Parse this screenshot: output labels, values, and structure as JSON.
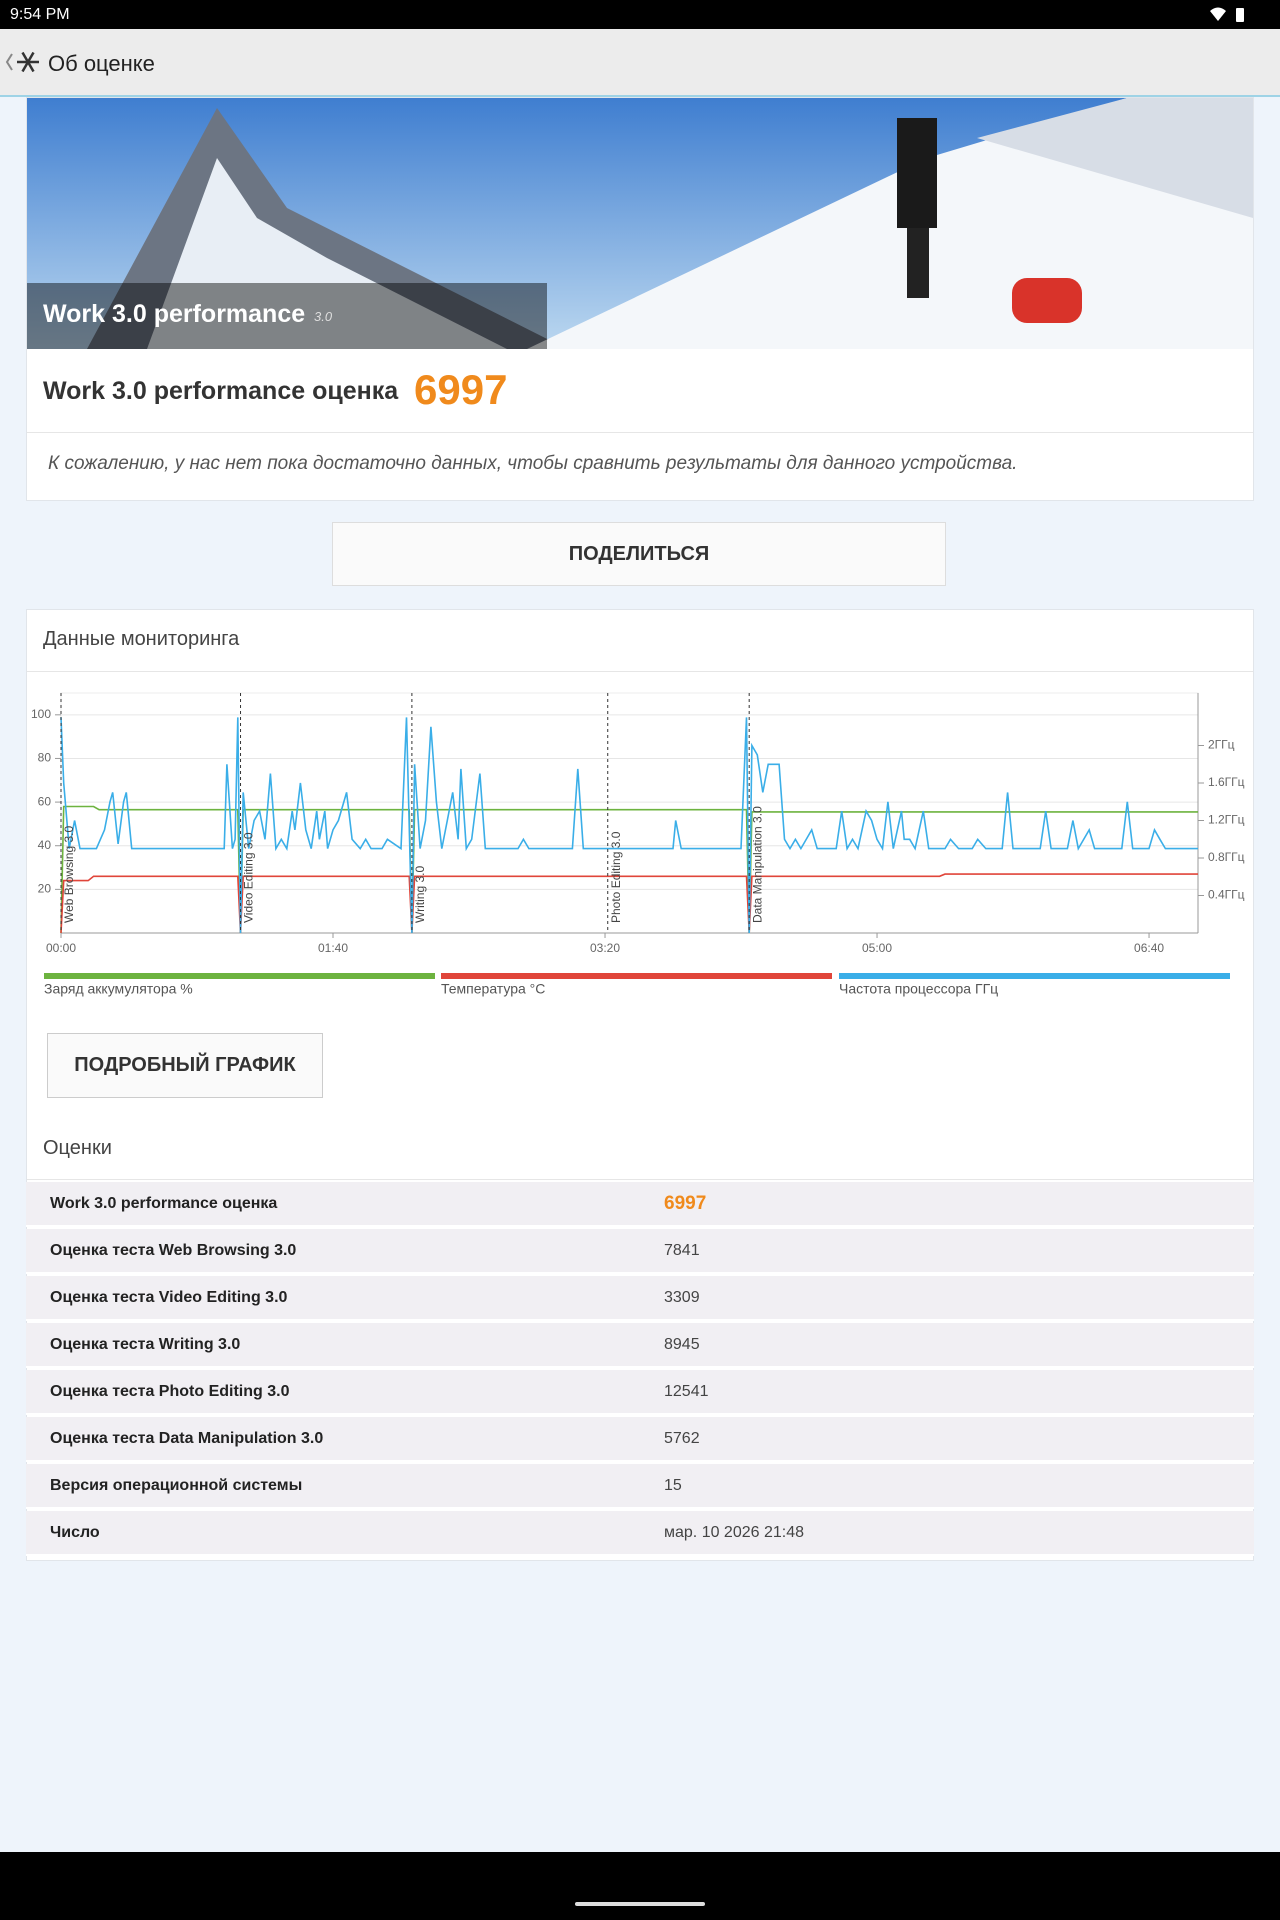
{
  "status_bar": {
    "time": "9:54 PM"
  },
  "app_bar": {
    "title": "Об оценке"
  },
  "banner": {
    "title": "Work 3.0 performance",
    "version": "3.0"
  },
  "score": {
    "label": "Work 3.0 performance оценка",
    "value": "6997"
  },
  "note": "К сожалению, у нас нет пока достаточно данных, чтобы сравнить результаты для данного устройства.",
  "share_button": "ПОДЕЛИТЬСЯ",
  "monitoring": {
    "title": "Данные мониторинга",
    "detail_button": "ПОДРОБНЫЙ ГРАФИК"
  },
  "chart_data": {
    "type": "line",
    "xlim": [
      0,
      418
    ],
    "xticks": [
      {
        "value": 0,
        "label": "00:00"
      },
      {
        "value": 100,
        "label": "01:40"
      },
      {
        "value": 200,
        "label": "03:20"
      },
      {
        "value": 300,
        "label": "05:00"
      },
      {
        "value": 400,
        "label": "06:40"
      }
    ],
    "ylim": [
      0,
      110
    ],
    "yticks": [
      20,
      40,
      60,
      80,
      100
    ],
    "y2lim": [
      0,
      2.56
    ],
    "y2ticks": [
      {
        "value": 0.4,
        "label": "0.4ГГц"
      },
      {
        "value": 0.8,
        "label": "0.8ГГц"
      },
      {
        "value": 1.2,
        "label": "1.2ГГц"
      },
      {
        "value": 1.6,
        "label": "1.6ГГц"
      },
      {
        "value": 2,
        "label": "2ГГц"
      }
    ],
    "grid": true,
    "markers": [
      {
        "label": "Web Browsing 3.0",
        "x": 0
      },
      {
        "label": "Video Editing 3.0",
        "x": 66
      },
      {
        "label": "Writing 3.0",
        "x": 129
      },
      {
        "label": "Photo Editing 3.0",
        "x": 201
      },
      {
        "label": "Data Manipulation 3.0",
        "x": 253
      }
    ],
    "series": [
      {
        "name": "Заряд аккумулятора %",
        "color": "#6db33f",
        "axis": "y",
        "x": [
          0,
          1,
          12,
          14,
          65,
          66,
          67,
          128,
          129,
          130,
          252,
          253,
          254,
          418
        ],
        "values": [
          0,
          58,
          58,
          56.5,
          56.5,
          0,
          56.5,
          56.5,
          0,
          56.5,
          56.5,
          0,
          55.5,
          55.5
        ]
      },
      {
        "name": "Температура °C",
        "color": "#e0453a",
        "axis": "y",
        "x": [
          0,
          1,
          10,
          12,
          65,
          66,
          67,
          128,
          129,
          130,
          252,
          253,
          254,
          323,
          325,
          418
        ],
        "values": [
          0,
          24,
          24,
          26,
          26,
          0,
          26,
          26,
          0,
          26,
          26,
          0,
          26,
          26,
          27,
          27
        ]
      },
      {
        "name": "Частота процессора ГГц",
        "color": "#3aaee8",
        "axis": "y2",
        "x": [
          0,
          1,
          3,
          5,
          7,
          10,
          13,
          16,
          18,
          19,
          21,
          23,
          24,
          26,
          30,
          40,
          50,
          60,
          61,
          63,
          64,
          65,
          66,
          67,
          69,
          71,
          73,
          75,
          77,
          79,
          81,
          83,
          85,
          86,
          88,
          90,
          92,
          94,
          95,
          97,
          98,
          100,
          102,
          105,
          107,
          110,
          112,
          114,
          118,
          120,
          125,
          127,
          129,
          130,
          132,
          134,
          136,
          138,
          140,
          142,
          144,
          146,
          147,
          149,
          151,
          154,
          156,
          160,
          168,
          170,
          172,
          180,
          188,
          190,
          192,
          199,
          201,
          202,
          215,
          225,
          226,
          228,
          240,
          250,
          252,
          253,
          254,
          256,
          258,
          260,
          262,
          264,
          266,
          268,
          270,
          272,
          276,
          278,
          285,
          287,
          289,
          291,
          293,
          296,
          298,
          300,
          302,
          304,
          306,
          309,
          310,
          312,
          314,
          317,
          319,
          325,
          327,
          330,
          335,
          337,
          340,
          346,
          348,
          350,
          360,
          362,
          364,
          370,
          372,
          374,
          378,
          380,
          390,
          392,
          394,
          400,
          402,
          404,
          406,
          418
        ],
        "values": [
          2.3,
          1.6,
          0.9,
          1.2,
          0.9,
          0.9,
          0.9,
          1.1,
          1.4,
          1.5,
          0.95,
          1.4,
          1.5,
          0.9,
          0.9,
          0.9,
          0.9,
          0.9,
          1.8,
          0.9,
          1.0,
          2.3,
          0,
          1.5,
          0.9,
          1.2,
          1.3,
          1.0,
          1.7,
          0.9,
          1.0,
          0.9,
          1.3,
          1.1,
          1.6,
          1.1,
          0.9,
          1.3,
          1.0,
          1.3,
          0.9,
          1.1,
          1.2,
          1.5,
          1.0,
          0.9,
          1.0,
          0.9,
          0.9,
          1.0,
          0.9,
          2.3,
          0,
          1.8,
          0.9,
          1.2,
          2.2,
          1.4,
          0.9,
          1.2,
          1.5,
          1.0,
          1.75,
          0.9,
          1.0,
          1.7,
          0.9,
          0.9,
          0.9,
          1.0,
          0.9,
          0.9,
          0.9,
          1.75,
          0.9,
          0.9,
          0.9,
          0.9,
          0.9,
          0.9,
          1.2,
          0.9,
          0.9,
          0.9,
          2.3,
          0,
          2.0,
          1.9,
          1.5,
          1.8,
          1.8,
          1.8,
          1.0,
          0.9,
          1.0,
          0.9,
          1.1,
          0.9,
          0.9,
          1.3,
          0.9,
          1.0,
          0.9,
          1.3,
          1.2,
          1.0,
          0.9,
          1.4,
          0.9,
          1.3,
          1.0,
          1.0,
          0.9,
          1.3,
          0.9,
          0.9,
          1.0,
          0.9,
          0.9,
          1.0,
          0.9,
          0.9,
          1.5,
          0.9,
          0.9,
          1.3,
          0.9,
          0.9,
          1.2,
          0.9,
          1.1,
          0.9,
          0.9,
          1.4,
          0.9,
          0.9,
          1.1,
          1.0,
          0.9,
          0.9
        ]
      }
    ]
  },
  "scores": {
    "title": "Оценки",
    "rows": [
      [
        "Work 3.0 performance оценка",
        "6997"
      ],
      [
        "Оценка теста Web Browsing 3.0",
        "7841"
      ],
      [
        "Оценка теста Video Editing 3.0",
        "3309"
      ],
      [
        "Оценка теста Writing 3.0",
        "8945"
      ],
      [
        "Оценка теста Photo Editing 3.0",
        "12541"
      ],
      [
        "Оценка теста Data Manipulation 3.0",
        "5762"
      ],
      [
        "Версия операционной системы",
        "15"
      ],
      [
        "Число",
        "мар. 10 2026 21:48"
      ]
    ]
  }
}
